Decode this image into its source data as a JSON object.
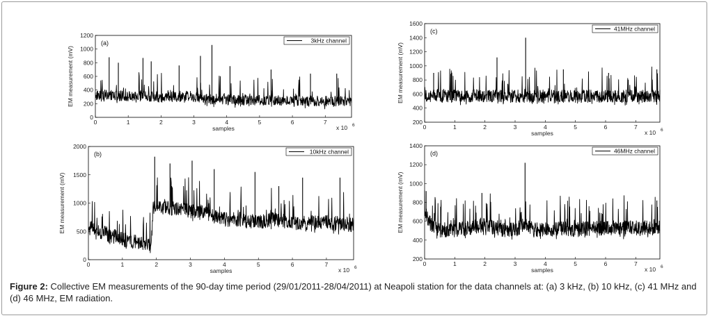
{
  "caption": {
    "label": "Figure 2:",
    "text": " Collective EM measurements of the 90-day time period (29/01/2011-28/04/2011) at Neapoli station for the data channels at: (a) 3 kHz, (b) 10 kHz, (c) 41 MHz and (d) 46 MHz, EM radiation."
  },
  "chart_data": [
    {
      "type": "line",
      "panel_label": "(a)",
      "legend": "3kHz channel",
      "xlabel": "samples",
      "ylabel": "EM measurement (mV)",
      "x_multiplier_label": "x 10",
      "x_multiplier_exp": "6",
      "xlim": [
        0,
        7.8
      ],
      "ylim": [
        0,
        1200
      ],
      "xticks": [
        0,
        1,
        2,
        3,
        4,
        5,
        6,
        7
      ],
      "yticks": [
        0,
        200,
        400,
        600,
        800,
        1000,
        1200
      ],
      "series": [
        {
          "baseline": [
            [
              0,
              320
            ],
            [
              0.5,
              320
            ],
            [
              1,
              300
            ],
            [
              1.5,
              310
            ],
            [
              2,
              290
            ],
            [
              2.5,
              300
            ],
            [
              3,
              300
            ],
            [
              3.5,
              260
            ],
            [
              4,
              250
            ],
            [
              4.5,
              250
            ],
            [
              5,
              240
            ],
            [
              5.5,
              240
            ],
            [
              6,
              240
            ],
            [
              6.5,
              230
            ],
            [
              7,
              230
            ],
            [
              7.8,
              230
            ]
          ],
          "peaks": [
            [
              0.42,
              880
            ],
            [
              0.7,
              800
            ],
            [
              1.45,
              870
            ],
            [
              1.7,
              820
            ],
            [
              2.55,
              760
            ],
            [
              3.2,
              900
            ],
            [
              3.55,
              1060
            ],
            [
              4.1,
              750
            ],
            [
              5.35,
              700
            ],
            [
              6.55,
              640
            ],
            [
              7.35,
              640
            ]
          ]
        }
      ]
    },
    {
      "type": "line",
      "panel_label": "(b)",
      "legend": "10kHz channel",
      "xlabel": "samples",
      "ylabel": "EM measurement (mV)",
      "x_multiplier_label": "x 10",
      "x_multiplier_exp": "6",
      "xlim": [
        0,
        7.8
      ],
      "ylim": [
        0,
        2000
      ],
      "xticks": [
        0,
        1,
        2,
        3,
        4,
        5,
        6,
        7
      ],
      "yticks": [
        0,
        500,
        1000,
        1500,
        2000
      ],
      "series": [
        {
          "baseline": [
            [
              0,
              550
            ],
            [
              0.5,
              450
            ],
            [
              1,
              350
            ],
            [
              1.5,
              280
            ],
            [
              1.85,
              250
            ],
            [
              1.9,
              900
            ],
            [
              2.5,
              900
            ],
            [
              3,
              850
            ],
            [
              3.5,
              800
            ],
            [
              4,
              700
            ],
            [
              4.5,
              700
            ],
            [
              5,
              650
            ],
            [
              5.5,
              700
            ],
            [
              6,
              620
            ],
            [
              6.5,
              650
            ],
            [
              7,
              650
            ],
            [
              7.8,
              600
            ]
          ],
          "peaks": [
            [
              1.95,
              1820
            ],
            [
              2.4,
              1700
            ],
            [
              3.05,
              1750
            ],
            [
              3.7,
              1600
            ],
            [
              4.9,
              1550
            ],
            [
              5.6,
              1300
            ],
            [
              6.3,
              1450
            ],
            [
              7.4,
              1450
            ]
          ]
        }
      ]
    },
    {
      "type": "line",
      "panel_label": "(c)",
      "legend": "41MHz channel",
      "xlabel": "samples",
      "ylabel": "EM measurement (mV)",
      "x_multiplier_label": "x 10",
      "x_multiplier_exp": "6",
      "xlim": [
        0,
        7.8
      ],
      "ylim": [
        200,
        1600
      ],
      "xticks": [
        0,
        1,
        2,
        3,
        4,
        5,
        6,
        7
      ],
      "yticks": [
        200,
        400,
        600,
        800,
        1000,
        1200,
        1400,
        1600
      ],
      "series": [
        {
          "baseline": [
            [
              0,
              560
            ],
            [
              1,
              560
            ],
            [
              2,
              570
            ],
            [
              3,
              560
            ],
            [
              4,
              560
            ],
            [
              5,
              560
            ],
            [
              6,
              560
            ],
            [
              7,
              560
            ],
            [
              7.8,
              570
            ]
          ],
          "peaks": [
            [
              0.3,
              900
            ],
            [
              2.4,
              1120
            ],
            [
              3.35,
              1400
            ],
            [
              4.6,
              950
            ],
            [
              6.1,
              900
            ],
            [
              7.7,
              950
            ]
          ]
        }
      ]
    },
    {
      "type": "line",
      "panel_label": "(d)",
      "legend": "46MHz channel",
      "xlabel": "samples",
      "ylabel": "EM measurement (mV)",
      "x_multiplier_label": "x 10",
      "x_multiplier_exp": "6",
      "xlim": [
        0,
        7.8
      ],
      "ylim": [
        200,
        1400
      ],
      "xticks": [
        0,
        1,
        2,
        3,
        4,
        5,
        6,
        7
      ],
      "yticks": [
        200,
        400,
        600,
        800,
        1000,
        1200,
        1400
      ],
      "series": [
        {
          "baseline": [
            [
              0,
              700
            ],
            [
              0.2,
              560
            ],
            [
              0.5,
              500
            ],
            [
              1,
              500
            ],
            [
              1.5,
              520
            ],
            [
              2,
              560
            ],
            [
              2.5,
              500
            ],
            [
              3,
              500
            ],
            [
              3.35,
              560
            ],
            [
              3.6,
              500
            ],
            [
              4,
              500
            ],
            [
              4.5,
              520
            ],
            [
              5,
              500
            ],
            [
              5.5,
              520
            ],
            [
              6,
              520
            ],
            [
              6.5,
              520
            ],
            [
              7,
              520
            ],
            [
              7.8,
              540
            ]
          ],
          "peaks": [
            [
              0.05,
              920
            ],
            [
              1.9,
              900
            ],
            [
              3.33,
              1220
            ],
            [
              4.8,
              760
            ],
            [
              7.7,
              820
            ]
          ]
        }
      ]
    }
  ]
}
